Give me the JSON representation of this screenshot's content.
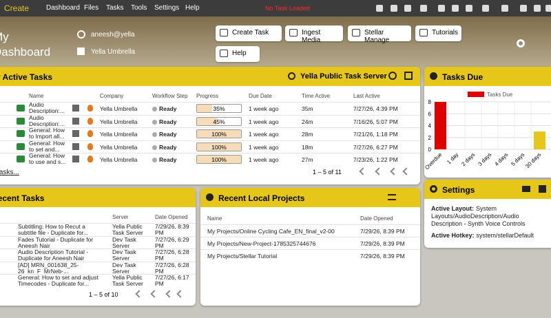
{
  "menu": {
    "brand": "Create",
    "items": [
      "Dashboard",
      "Files",
      "Tasks",
      "Tools",
      "Settings",
      "Help"
    ],
    "status": "No Task Loaded"
  },
  "header": {
    "title": "My Dashboard",
    "user": "aneesh@yella",
    "org": "Yella Umbrella",
    "buttons": [
      "Create Task",
      "Ingest Media",
      "Stellar Manage",
      "Tutorials",
      "Help"
    ]
  },
  "active_tasks": {
    "title": "My Active Tasks",
    "server": "Yella Public Task Server",
    "columns": [
      "Name",
      "Company",
      "Workflow Step",
      "Progress",
      "Due Date",
      "Time Active",
      "Last Active"
    ],
    "rows": [
      {
        "name": "Audio Description:...",
        "company": "Yella Umbrella",
        "step": "Ready",
        "progress": 35,
        "progress_label": "35%",
        "due": "1 week ago",
        "time": "35m",
        "last": "7/27/26, 4:39 PM"
      },
      {
        "name": "Audio Description:...",
        "company": "Yella Umbrella",
        "step": "Ready",
        "progress": 45,
        "progress_label": "45%",
        "due": "1 week ago",
        "time": "24m",
        "last": "7/16/26, 5:07 PM"
      },
      {
        "name": "General: How to Import all...",
        "company": "Yella Umbrella",
        "step": "Ready",
        "progress": 100,
        "progress_label": "100%",
        "due": "1 week ago",
        "time": "28m",
        "last": "7/21/26, 1:18 PM"
      },
      {
        "name": "General: How to set and...",
        "company": "Yella Umbrella",
        "step": "Ready",
        "progress": 100,
        "progress_label": "100%",
        "due": "1 week ago",
        "time": "18m",
        "last": "7/27/26, 6:27 PM"
      },
      {
        "name": "General: How to use and s...",
        "company": "Yella Umbrella",
        "step": "Ready",
        "progress": 100,
        "progress_label": "100%",
        "due": "1 week ago",
        "time": "27m",
        "last": "7/23/26, 1:22 PM"
      }
    ],
    "link": "My tasks...",
    "pager": "1 – 5 of 11"
  },
  "recent_tasks": {
    "title": "Recent Tasks",
    "columns": [
      "Server",
      "Date Opened"
    ],
    "rows": [
      {
        "name": "Subtitling: How to Recut a subtitle file - Duplicate for...",
        "server": "Yella Public Task Server",
        "date": "7/29/26, 8:39 PM"
      },
      {
        "name": "Fades Tutorial - Duplicate for Aneesh Nair",
        "server": "Dev Task Server",
        "date": "7/27/26, 6:29 PM"
      },
      {
        "name": "Audio Description Tutorial - Duplicate for Aneesh Nair",
        "server": "Dev Task Server",
        "date": "7/27/26, 6:28 PM"
      },
      {
        "name": "[AD] MRN_001638_25-26_kn_F_MrNeb-...",
        "server": "Dev Task Server",
        "date": "7/27/26, 6:28 PM"
      },
      {
        "name": "General: How to set and adjust Timecodes - Duplicate for...",
        "server": "Yella Public Task Server",
        "date": "7/27/26, 6:17 PM"
      }
    ],
    "pager": "1 – 5 of 10"
  },
  "local_projects": {
    "title": "Recent Local Projects",
    "columns": [
      "Name",
      "Date Opened"
    ],
    "rows": [
      {
        "name": "My Projects/Online Cycling Cafe_EN_final_v2-00",
        "date": "7/29/26, 8:39 PM"
      },
      {
        "name": "My Projects/New-Project-1785325744676",
        "date": "7/29/26, 8:39 PM"
      },
      {
        "name": "My Projects/Stellar Tutorial",
        "date": "7/29/26, 8:39 PM"
      }
    ]
  },
  "tasks_due": {
    "title": "Tasks Due",
    "chart_data": {
      "type": "bar",
      "categories": [
        "Overdue",
        "1 day",
        "2 days",
        "3 days",
        "4 days",
        "5 days",
        "30 days"
      ],
      "series": [
        {
          "name": "Tasks Due",
          "color": "#e00000",
          "values": [
            8,
            0,
            0,
            0,
            0,
            0,
            3
          ]
        }
      ],
      "bar_colors": [
        "#e00000",
        "#e00000",
        "#e00000",
        "#e00000",
        "#e00000",
        "#e00000",
        "#e6c619"
      ],
      "ylim": [
        0,
        8
      ],
      "yticks": [
        0,
        2,
        4,
        6,
        8
      ],
      "grid": true
    }
  },
  "settings": {
    "title": "Settings",
    "layout_label": "Active Layout:",
    "layout": "System Layouts/AudioDescription/Audio Description - Synth Voice Controls",
    "hotkey_label": "Active Hotkey:",
    "hotkey": "system/stellarDefault"
  }
}
